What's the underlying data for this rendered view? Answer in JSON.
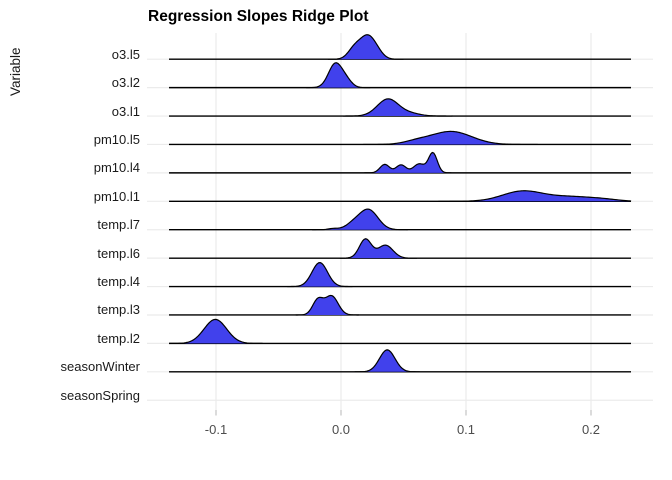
{
  "title": "Regression Slopes Ridge Plot",
  "y_axis": {
    "label": "Variable"
  },
  "x_axis": {
    "tick_labels": [
      "-0.1",
      "0.0",
      "0.1",
      "0.2"
    ],
    "tick_values": [
      -0.1,
      0.0,
      0.1,
      0.2
    ]
  },
  "colors": {
    "density_fill": "#4141EC",
    "density_stroke": "#000000",
    "baseline": "#000000",
    "grid": "#EBEBEB",
    "tick_mark": "#BDBDBD",
    "axis_text": "#4D4D4D",
    "label_text": "#1A1A1A",
    "background": "#FFFFFF"
  },
  "chart_data": {
    "type": "ridgeline",
    "title": "Regression Slopes Ridge Plot",
    "xlabel": "",
    "ylabel": "Variable",
    "x_ticks": [
      -0.1,
      0.0,
      0.1,
      0.2
    ],
    "x_range": [
      -0.155,
      0.25
    ],
    "grid": true,
    "legend": false,
    "categories": [
      "o3.l5",
      "o3.l2",
      "o3.l1",
      "pm10.l5",
      "pm10.l4",
      "pm10.l1",
      "temp.l7",
      "temp.l6",
      "temp.l4",
      "temp.l3",
      "temp.l2",
      "seasonWinter",
      "seasonSpring"
    ],
    "series": [
      {
        "name": "o3.l5",
        "peak": 0.021,
        "components": [
          {
            "mu": 0.021,
            "sd": 0.006,
            "h": 22
          },
          {
            "mu": 0.0105,
            "sd": 0.005,
            "h": 10
          },
          {
            "mu": 0.029,
            "sd": 0.005,
            "h": 5
          }
        ]
      },
      {
        "name": "o3.l2",
        "peak": -0.0045,
        "components": [
          {
            "mu": -0.0045,
            "sd": 0.0055,
            "h": 24
          },
          {
            "mu": 0.0045,
            "sd": 0.0045,
            "h": 6
          }
        ]
      },
      {
        "name": "o3.l1",
        "peak": 0.0375,
        "components": [
          {
            "mu": 0.0375,
            "sd": 0.0085,
            "h": 17
          },
          {
            "mu": 0.0555,
            "sd": 0.008,
            "h": 2.5
          }
        ]
      },
      {
        "name": "pm10.l5",
        "peak": 0.088,
        "components": [
          {
            "mu": 0.088,
            "sd": 0.0165,
            "h": 13
          },
          {
            "mu": 0.06,
            "sd": 0.01,
            "h": 2.5
          }
        ]
      },
      {
        "name": "pm10.l4",
        "peak": 0.0735,
        "components": [
          {
            "mu": 0.035,
            "sd": 0.0038,
            "h": 8.5
          },
          {
            "mu": 0.048,
            "sd": 0.004,
            "h": 8
          },
          {
            "mu": 0.0625,
            "sd": 0.0045,
            "h": 9
          },
          {
            "mu": 0.0735,
            "sd": 0.0035,
            "h": 20
          }
        ]
      },
      {
        "name": "pm10.l1",
        "peak": 0.145,
        "components": [
          {
            "mu": 0.145,
            "sd": 0.016,
            "h": 10
          },
          {
            "mu": 0.183,
            "sd": 0.018,
            "h": 4.5
          },
          {
            "mu": 0.21,
            "sd": 0.012,
            "h": 1.5
          }
        ]
      },
      {
        "name": "temp.l7",
        "peak": 0.022,
        "components": [
          {
            "mu": 0.022,
            "sd": 0.0075,
            "h": 20
          },
          {
            "mu": 0.0095,
            "sd": 0.006,
            "h": 5
          },
          {
            "mu": -0.006,
            "sd": 0.004,
            "h": 1.2
          }
        ]
      },
      {
        "name": "temp.l6",
        "peak": 0.0195,
        "components": [
          {
            "mu": 0.0195,
            "sd": 0.0048,
            "h": 19
          },
          {
            "mu": 0.0355,
            "sd": 0.006,
            "h": 13
          }
        ]
      },
      {
        "name": "temp.l4",
        "peak": -0.017,
        "components": [
          {
            "mu": -0.017,
            "sd": 0.0062,
            "h": 24
          }
        ]
      },
      {
        "name": "temp.l3",
        "peak": -0.0075,
        "components": [
          {
            "mu": -0.0185,
            "sd": 0.0042,
            "h": 15
          },
          {
            "mu": -0.0075,
            "sd": 0.0052,
            "h": 19
          }
        ]
      },
      {
        "name": "temp.l2",
        "peak": -0.1005,
        "components": [
          {
            "mu": -0.1005,
            "sd": 0.009,
            "h": 24
          }
        ]
      },
      {
        "name": "seasonWinter",
        "peak": 0.037,
        "components": [
          {
            "mu": 0.037,
            "sd": 0.0062,
            "h": 22
          }
        ]
      },
      {
        "name": "seasonSpring",
        "peak": null,
        "components": []
      }
    ]
  }
}
